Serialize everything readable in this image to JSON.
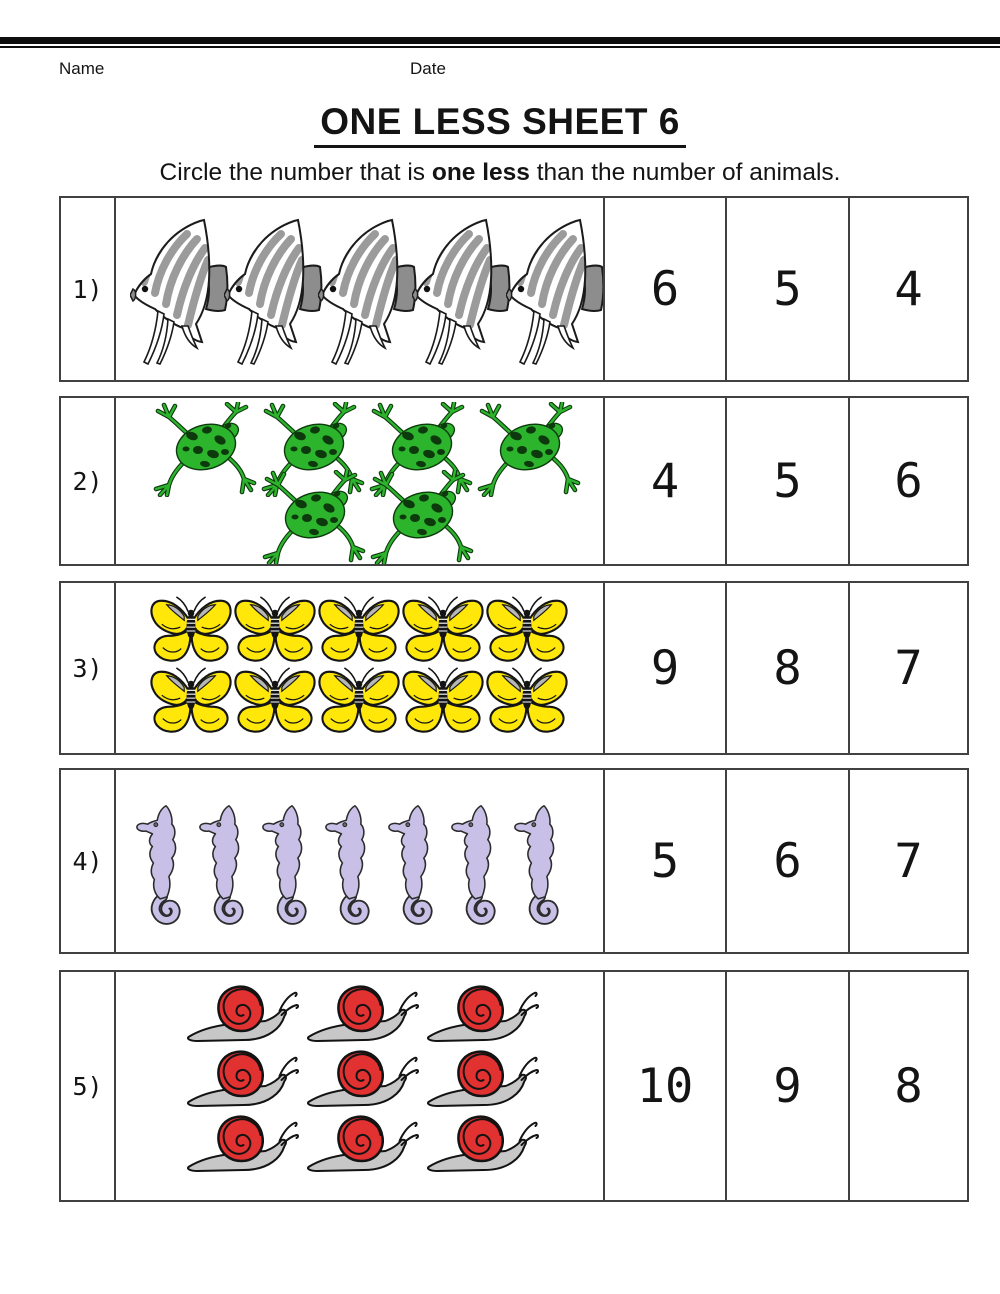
{
  "header": {
    "name_label": "Name",
    "date_label": "Date",
    "title": "ONE LESS SHEET 6",
    "instruction_prefix": "Circle the number that is ",
    "instruction_bold": "one less",
    "instruction_suffix": " than the number of animals."
  },
  "rows": [
    {
      "label": "1)",
      "animal": "angelfish",
      "count": 5,
      "choices": [
        "6",
        "5",
        "4"
      ]
    },
    {
      "label": "2)",
      "animal": "frog",
      "count": 6,
      "choices": [
        "4",
        "5",
        "6"
      ]
    },
    {
      "label": "3)",
      "animal": "butterfly",
      "count": 10,
      "choices": [
        "9",
        "8",
        "7"
      ]
    },
    {
      "label": "4)",
      "animal": "seahorse",
      "count": 7,
      "choices": [
        "5",
        "6",
        "7"
      ]
    },
    {
      "label": "5)",
      "animal": "snail",
      "count": 9,
      "choices": [
        "10",
        "9",
        "8"
      ]
    }
  ],
  "colors": {
    "fish_stripe_gray": "#9b9b9b",
    "fish_fin_gray": "#8d8d8d",
    "frog_green": "#2db42d",
    "frog_spot_dark": "#0d3a0d",
    "butterfly_yellow": "#ffe70a",
    "butterfly_patch_gray": "#b7b7b7",
    "seahorse_lavender": "#c8c0e7",
    "snail_shell_red": "#e23131",
    "snail_foot_gray": "#c7c7c7"
  }
}
